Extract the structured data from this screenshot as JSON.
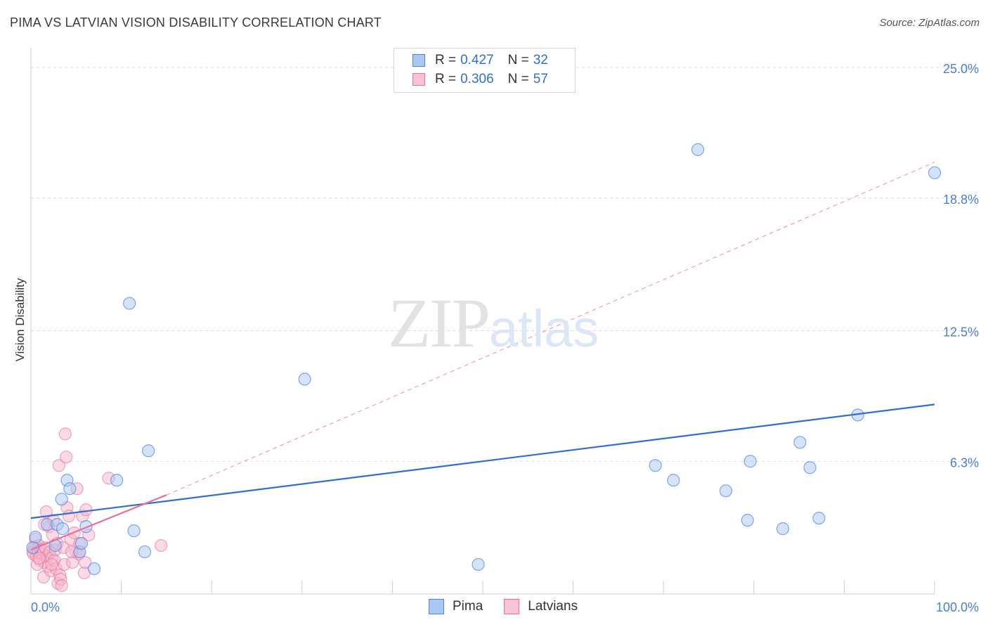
{
  "header": {
    "title": "PIMA VS LATVIAN VISION DISABILITY CORRELATION CHART",
    "source": "Source: ZipAtlas.com"
  },
  "watermark": {
    "zip": "ZIP",
    "atlas": "atlas"
  },
  "legend": {
    "rows": [
      {
        "r_label": "R =",
        "r_value": "0.427",
        "n_label": "N =",
        "n_value": "32"
      },
      {
        "r_label": "R =",
        "r_value": "0.306",
        "n_label": "N =",
        "n_value": "57"
      }
    ]
  },
  "bottom_legend": [
    "Pima",
    "Latvians"
  ],
  "chart_data": {
    "type": "scatter",
    "title": "PIMA VS LATVIAN VISION DISABILITY CORRELATION CHART",
    "xlabel": "",
    "ylabel": "Vision Disability",
    "xlim": [
      0,
      100
    ],
    "ylim": [
      0,
      25
    ],
    "x_tick_labels": [
      "0.0%",
      "100.0%"
    ],
    "y_ticks": [
      6.3,
      12.5,
      18.8,
      25.0
    ],
    "y_tick_labels": [
      "6.3%",
      "12.5%",
      "18.8%",
      "25.0%"
    ],
    "grid": true,
    "colors": {
      "pima": "#4a86e8",
      "pima_fill": "#aac8f2",
      "latvians": "#e8709a",
      "latvians_fill": "#f6b8cc"
    },
    "series": [
      {
        "name": "Pima",
        "points": [
          [
            0.5,
            2.7
          ],
          [
            1.8,
            3.3
          ],
          [
            2.7,
            2.3
          ],
          [
            2.9,
            3.3
          ],
          [
            3.4,
            4.5
          ],
          [
            3.5,
            3.1
          ],
          [
            4.0,
            5.4
          ],
          [
            4.3,
            5.0
          ],
          [
            5.4,
            2.0
          ],
          [
            5.6,
            2.4
          ],
          [
            6.1,
            3.2
          ],
          [
            7.0,
            1.2
          ],
          [
            9.5,
            5.4
          ],
          [
            10.9,
            13.8
          ],
          [
            11.4,
            3.0
          ],
          [
            12.6,
            2.0
          ],
          [
            13.0,
            6.8
          ],
          [
            30.3,
            10.2
          ],
          [
            49.5,
            1.4
          ],
          [
            69.1,
            6.1
          ],
          [
            71.1,
            5.4
          ],
          [
            73.8,
            21.1
          ],
          [
            76.9,
            4.9
          ],
          [
            79.3,
            3.5
          ],
          [
            79.6,
            6.3
          ],
          [
            83.2,
            3.1
          ],
          [
            85.1,
            7.2
          ],
          [
            86.2,
            6.0
          ],
          [
            87.2,
            3.6
          ],
          [
            91.5,
            8.5
          ],
          [
            100.0,
            20.0
          ],
          [
            0.2,
            2.2
          ]
        ],
        "trend": {
          "x": [
            0,
            100
          ],
          "y": [
            3.6,
            9.0
          ],
          "style": "solid"
        }
      },
      {
        "name": "Latvians",
        "points": [
          [
            0.2,
            2.0
          ],
          [
            0.3,
            1.9
          ],
          [
            0.4,
            2.2
          ],
          [
            0.5,
            2.6
          ],
          [
            0.6,
            1.8
          ],
          [
            0.8,
            2.0
          ],
          [
            0.9,
            2.3
          ],
          [
            1.0,
            1.6
          ],
          [
            1.1,
            2.1
          ],
          [
            1.2,
            1.9
          ],
          [
            1.3,
            2.1
          ],
          [
            1.4,
            0.8
          ],
          [
            1.5,
            1.5
          ],
          [
            1.6,
            2.2
          ],
          [
            1.7,
            3.9
          ],
          [
            1.8,
            1.8
          ],
          [
            1.9,
            1.3
          ],
          [
            2.0,
            3.2
          ],
          [
            2.1,
            2.0
          ],
          [
            2.2,
            1.1
          ],
          [
            2.3,
            1.7
          ],
          [
            2.4,
            2.8
          ],
          [
            2.5,
            3.5
          ],
          [
            2.6,
            1.6
          ],
          [
            2.7,
            2.1
          ],
          [
            2.8,
            1.2
          ],
          [
            2.9,
            2.4
          ],
          [
            3.0,
            0.5
          ],
          [
            3.1,
            6.1
          ],
          [
            3.2,
            0.9
          ],
          [
            3.3,
            0.7
          ],
          [
            3.4,
            0.4
          ],
          [
            3.6,
            2.2
          ],
          [
            3.7,
            1.4
          ],
          [
            3.8,
            7.6
          ],
          [
            3.9,
            6.5
          ],
          [
            4.0,
            4.1
          ],
          [
            4.2,
            3.7
          ],
          [
            4.4,
            2.6
          ],
          [
            4.6,
            1.5
          ],
          [
            4.8,
            2.9
          ],
          [
            5.0,
            2.0
          ],
          [
            5.1,
            5.0
          ],
          [
            5.3,
            1.9
          ],
          [
            5.4,
            2.4
          ],
          [
            5.7,
            3.7
          ],
          [
            5.9,
            1.0
          ],
          [
            6.0,
            1.5
          ],
          [
            6.1,
            4.0
          ],
          [
            6.4,
            2.8
          ],
          [
            8.6,
            5.5
          ],
          [
            14.4,
            2.3
          ],
          [
            0.7,
            1.4
          ],
          [
            1.5,
            3.3
          ],
          [
            2.3,
            1.4
          ],
          [
            0.9,
            1.7
          ],
          [
            4.5,
            2.0
          ]
        ],
        "trend": {
          "x": [
            0,
            15
          ],
          "y": [
            2.1,
            4.7
          ],
          "style": "solid"
        },
        "trend_extension": {
          "x": [
            15,
            100
          ],
          "y": [
            4.7,
            20.5
          ],
          "style": "dashed"
        }
      }
    ]
  }
}
